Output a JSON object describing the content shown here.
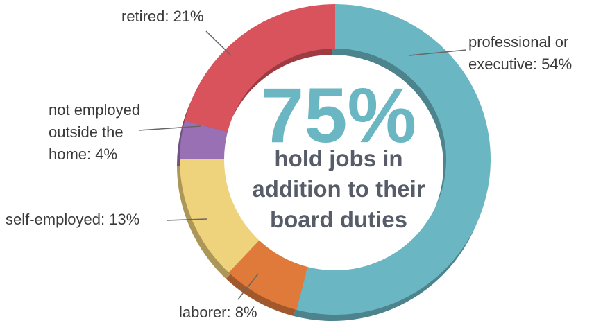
{
  "chart_data": {
    "type": "donut",
    "categories": [
      "professional or\nexecutive: 54%",
      "laborer: 8%",
      "self-employed: 13%",
      "not employed\noutside the\nhome: 4%",
      "retired: 21%"
    ],
    "values": [
      54,
      8,
      13,
      4,
      21
    ],
    "colors": [
      "#6ab6c3",
      "#df7a3a",
      "#efd27c",
      "#9a70b4",
      "#d8535b"
    ],
    "center_value": "75%",
    "center_text": "hold jobs in\naddition to their\nboard duties"
  }
}
